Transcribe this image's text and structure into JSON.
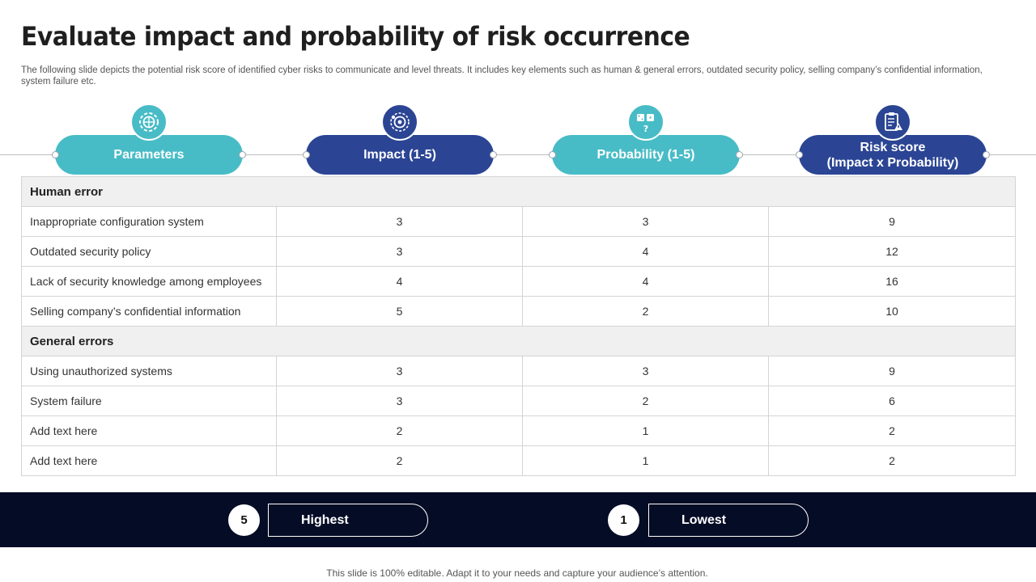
{
  "title": "Evaluate impact and probability of risk occurrence",
  "subtitle": "The following slide depicts the potential risk score of identified cyber risks to communicate and level threats. It includes key elements such as human & general errors, outdated security policy, selling company’s confidential information, system failure etc.",
  "headers": {
    "parameters": "Parameters",
    "impact": "Impact (1-5)",
    "probability": "Probability (1-5)",
    "risk_line1": "Risk score",
    "risk_line2": "(Impact x Probability)"
  },
  "icons": [
    "settings-gear-icon",
    "target-dartboard-icon",
    "dice-question-icon",
    "clipboard-warning-icon"
  ],
  "colors": {
    "teal": "#48bcc6",
    "navy": "#2b4594",
    "band": "#050c25"
  },
  "sections": [
    {
      "name": "Human error",
      "rows": [
        {
          "param": "Inappropriate configuration system",
          "impact": "3",
          "probability": "3",
          "risk": "9"
        },
        {
          "param": "Outdated security policy",
          "impact": "3",
          "probability": "4",
          "risk": "12"
        },
        {
          "param": "Lack of security knowledge among employees",
          "impact": "4",
          "probability": "4",
          "risk": "16"
        },
        {
          "param": "Selling company’s confidential information",
          "impact": "5",
          "probability": "2",
          "risk": "10"
        }
      ]
    },
    {
      "name": "General errors",
      "rows": [
        {
          "param": "Using unauthorized systems",
          "impact": "3",
          "probability": "3",
          "risk": "9"
        },
        {
          "param": "System failure",
          "impact": "3",
          "probability": "2",
          "risk": "6"
        },
        {
          "param": "Add text here",
          "impact": "2",
          "probability": "1",
          "risk": "2"
        },
        {
          "param": "Add text here",
          "impact": "2",
          "probability": "1",
          "risk": "2"
        }
      ]
    }
  ],
  "legend": {
    "highest_num": "5",
    "highest_label": "Highest",
    "lowest_num": "1",
    "lowest_label": "Lowest"
  },
  "note": "This slide is 100% editable. Adapt it to your needs and capture your audience’s attention."
}
